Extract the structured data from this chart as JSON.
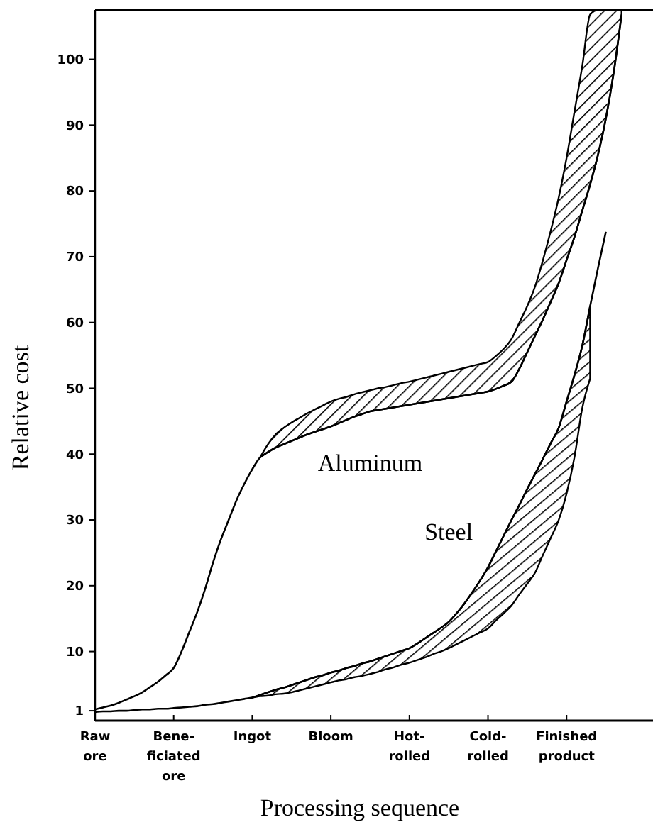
{
  "chart_data": {
    "type": "line",
    "xlabel": "Processing sequence",
    "ylabel": "Relative cost",
    "categories": [
      "Raw\nore",
      null,
      null,
      null,
      null,
      null,
      null,
      null,
      null,
      null,
      "Bene-\nficiated\nore",
      null,
      null,
      null,
      null,
      null,
      null,
      null,
      null,
      null,
      "Ingot",
      null,
      null,
      null,
      null,
      null,
      null,
      null,
      null,
      null,
      "Bloom",
      null,
      null,
      null,
      null,
      null,
      null,
      null,
      null,
      null,
      "Hot-\nrolled",
      null,
      null,
      null,
      null,
      null,
      null,
      null,
      null,
      null,
      "Cold-\nrolled",
      null,
      null,
      null,
      null,
      null,
      null,
      null,
      null,
      null,
      "Finished\nproduct",
      null,
      null,
      null,
      null,
      null,
      null,
      null,
      null,
      null,
      null
    ],
    "ylim": [
      -0.5,
      107.5
    ],
    "yticks": [
      1,
      10,
      20,
      30,
      40,
      50,
      60,
      70,
      80,
      90,
      100
    ],
    "marker": "none",
    "line_style": "solid",
    "series": [
      {
        "name": "Aluminum",
        "color": "#000000",
        "values": [
          1.2,
          1.5,
          1.8,
          2.2,
          2.7,
          3.2,
          3.8,
          4.6,
          5.4,
          6.4,
          7.5,
          10,
          13,
          16,
          19.5,
          23.5,
          27,
          30,
          33,
          35.5,
          37.7,
          39.5,
          40.3,
          41,
          41.5,
          42,
          42.5,
          43,
          43.4,
          43.8,
          44.2,
          44.7,
          45.2,
          45.7,
          46.1,
          46.5,
          46.7,
          46.9,
          47.1,
          47.3,
          47.5,
          47.7,
          47.9,
          48.1,
          48.3,
          48.5,
          48.7,
          48.9,
          49.1,
          49.3,
          49.5,
          49.9,
          50.4,
          51,
          53,
          55.5,
          58,
          60.5,
          63.2,
          66,
          69.5,
          73,
          77,
          81,
          85.5,
          91,
          98,
          106.8,
          null,
          null,
          null
        ],
        "lower": [
          null,
          null,
          null,
          null,
          null,
          null,
          null,
          null,
          null,
          null,
          null,
          null,
          null,
          null,
          null,
          null,
          null,
          null,
          null,
          null,
          null,
          39.5,
          40.3,
          41,
          41.5,
          42,
          42.5,
          43,
          43.4,
          43.8,
          44.2,
          44.7,
          45.2,
          45.7,
          46.1,
          46.5,
          46.7,
          46.9,
          47.1,
          47.3,
          47.5,
          47.7,
          47.9,
          48.1,
          48.3,
          48.5,
          48.7,
          48.9,
          49.1,
          49.3,
          49.5,
          49.9,
          50.4,
          51,
          53,
          55.5,
          58,
          60.5,
          63.2,
          66,
          69.5,
          73,
          77,
          81,
          85.5,
          91,
          98,
          106.8,
          null,
          null,
          null
        ],
        "upper": [
          null,
          null,
          null,
          null,
          null,
          null,
          null,
          null,
          null,
          null,
          null,
          null,
          null,
          null,
          null,
          null,
          null,
          null,
          null,
          null,
          null,
          39.5,
          41.5,
          43,
          44,
          44.8,
          45.5,
          46.2,
          46.8,
          47.4,
          48,
          48.4,
          48.7,
          49.1,
          49.4,
          49.7,
          50,
          50.2,
          50.5,
          50.8,
          51,
          51.3,
          51.6,
          51.9,
          52.2,
          52.5,
          52.8,
          53.1,
          53.4,
          53.7,
          54,
          54.9,
          56,
          57.5,
          60,
          62.5,
          65.5,
          69.5,
          74,
          79,
          85,
          92,
          99,
          106.8,
          107.5,
          107.5,
          107.5,
          107.5,
          null,
          null,
          null
        ]
      },
      {
        "name": "Steel",
        "color": "#000000",
        "values": [
          0.8,
          0.9,
          0.9,
          1,
          1,
          1.1,
          1.2,
          1.2,
          1.3,
          1.3,
          1.4,
          1.5,
          1.6,
          1.7,
          1.9,
          2,
          2.2,
          2.4,
          2.6,
          2.8,
          3,
          3.4,
          3.8,
          4.2,
          4.5,
          4.9,
          5.3,
          5.7,
          6.1,
          6.4,
          6.8,
          7.1,
          7.5,
          7.8,
          8.2,
          8.5,
          8.9,
          9.3,
          9.7,
          10.1,
          10.5,
          11.2,
          12,
          12.8,
          13.6,
          14.5,
          15.8,
          17.3,
          19,
          20.8,
          22.8,
          25.2,
          27.6,
          30,
          32.3,
          34.7,
          37,
          39.3,
          41.7,
          44,
          48,
          52,
          56.5,
          62.5,
          68.3,
          73.8,
          null,
          null,
          null,
          null,
          null
        ],
        "lower": [
          null,
          null,
          null,
          null,
          null,
          null,
          null,
          null,
          null,
          null,
          null,
          null,
          null,
          null,
          null,
          null,
          null,
          null,
          null,
          null,
          3,
          3.2,
          3.3,
          3.5,
          3.6,
          3.8,
          4.1,
          4.4,
          4.7,
          5,
          5.3,
          5.6,
          5.8,
          6.1,
          6.3,
          6.6,
          6.9,
          7.3,
          7.6,
          8,
          8.3,
          8.7,
          9.1,
          9.6,
          10,
          10.5,
          11.1,
          11.7,
          12.3,
          12.9,
          13.5,
          14.7,
          15.8,
          17,
          18.7,
          20.3,
          22,
          24.7,
          27.3,
          30,
          34,
          39.5,
          47,
          51.5,
          null,
          null,
          null,
          null,
          null,
          null,
          null
        ],
        "upper": [
          null,
          null,
          null,
          null,
          null,
          null,
          null,
          null,
          null,
          null,
          null,
          null,
          null,
          null,
          null,
          null,
          null,
          null,
          null,
          null,
          3,
          3.4,
          3.8,
          4.2,
          4.5,
          4.9,
          5.3,
          5.7,
          6.1,
          6.4,
          6.8,
          7.1,
          7.5,
          7.8,
          8.2,
          8.5,
          8.9,
          9.3,
          9.7,
          10.1,
          10.5,
          11.2,
          12,
          12.8,
          13.6,
          14.5,
          15.8,
          17.3,
          19,
          20.8,
          22.8,
          25.2,
          27.6,
          30,
          32.3,
          34.7,
          37,
          39.3,
          41.7,
          44,
          48,
          52,
          56.5,
          62.5,
          null,
          null,
          null,
          null,
          null,
          null,
          null
        ]
      }
    ]
  }
}
